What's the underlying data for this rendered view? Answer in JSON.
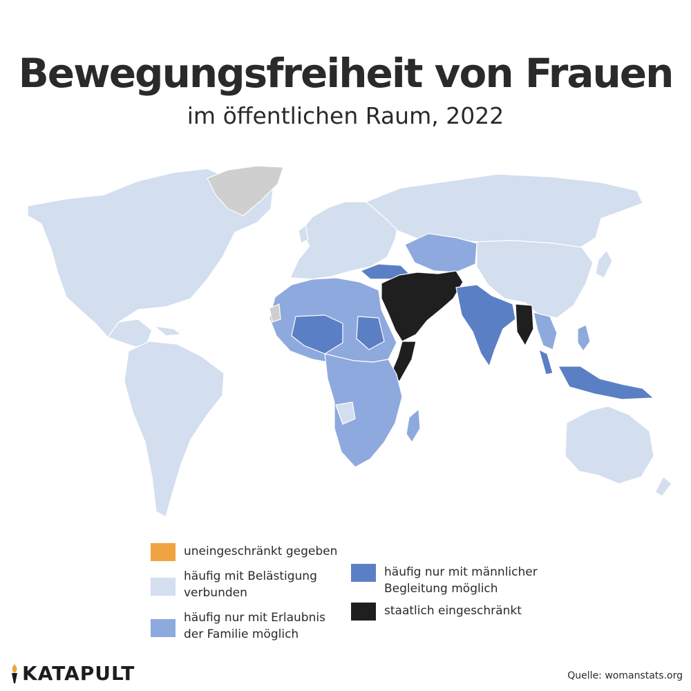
{
  "title": "Bewegungsfreiheit von Frauen",
  "subtitle": "im öffentlichen Raum, 2022",
  "colors": {
    "unrestricted": "#f0a341",
    "harassment": "#d3deef",
    "family_permission": "#8ea9dd",
    "male_escort": "#5b7fc4",
    "state_restricted": "#1f1f1f",
    "no_data": "#cfcfcf"
  },
  "legend": [
    {
      "key": "unrestricted",
      "label": "uneingeschränkt gegeben",
      "color": "#f0a341"
    },
    {
      "key": "harassment",
      "label": "häufig mit Belästigung\nverbunden",
      "color": "#d3deef"
    },
    {
      "key": "family_permission",
      "label": "häufig nur mit Erlaubnis\nder Familie möglich",
      "color": "#8ea9dd"
    },
    {
      "key": "male_escort",
      "label": "häufig nur mit männlicher\nBegleitung möglich",
      "color": "#5b7fc4"
    },
    {
      "key": "state_restricted",
      "label": "staatlich eingeschränkt",
      "color": "#1f1f1f"
    }
  ],
  "logo": {
    "text": "KATAPULT",
    "icon": "torch-icon"
  },
  "source": "Quelle: womanstats.org"
}
